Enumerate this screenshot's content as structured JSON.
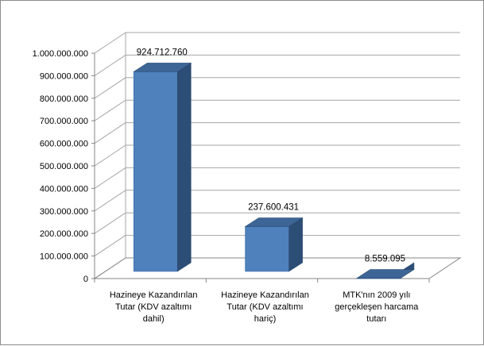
{
  "chart_data": {
    "type": "bar",
    "style": "3d-column",
    "title": "",
    "xlabel": "",
    "ylabel": "",
    "ylim": [
      0,
      1000000000
    ],
    "ytick_step": 100000000,
    "y_ticks": [
      "0",
      "100.000.000",
      "200.000.000",
      "300.000.000",
      "400.000.000",
      "500.000.000",
      "600.000.000",
      "700.000.000",
      "800.000.000",
      "900.000.000",
      "1.000.000.000"
    ],
    "grid": true,
    "legend": "none",
    "categories": [
      [
        "Hazineye Kazandırılan",
        "Tutar (KDV azaltımı",
        "dahil)"
      ],
      [
        "Hazineye Kazandırılan",
        "Tutar (KDV azaltımı",
        "hariç)"
      ],
      [
        "MTK'nın 2009 yılı",
        "gerçekleşen harcama",
        "tutarı"
      ]
    ],
    "values": [
      924712760,
      237600431,
      8559095
    ],
    "data_labels": [
      "924.712.760",
      "237.600.431",
      "8.559.095"
    ],
    "colors": {
      "front": "#4f81bd",
      "side": "#2c4d75",
      "top": "#3d6596",
      "grid": "#a6a6a6",
      "axis": "#868686"
    }
  }
}
